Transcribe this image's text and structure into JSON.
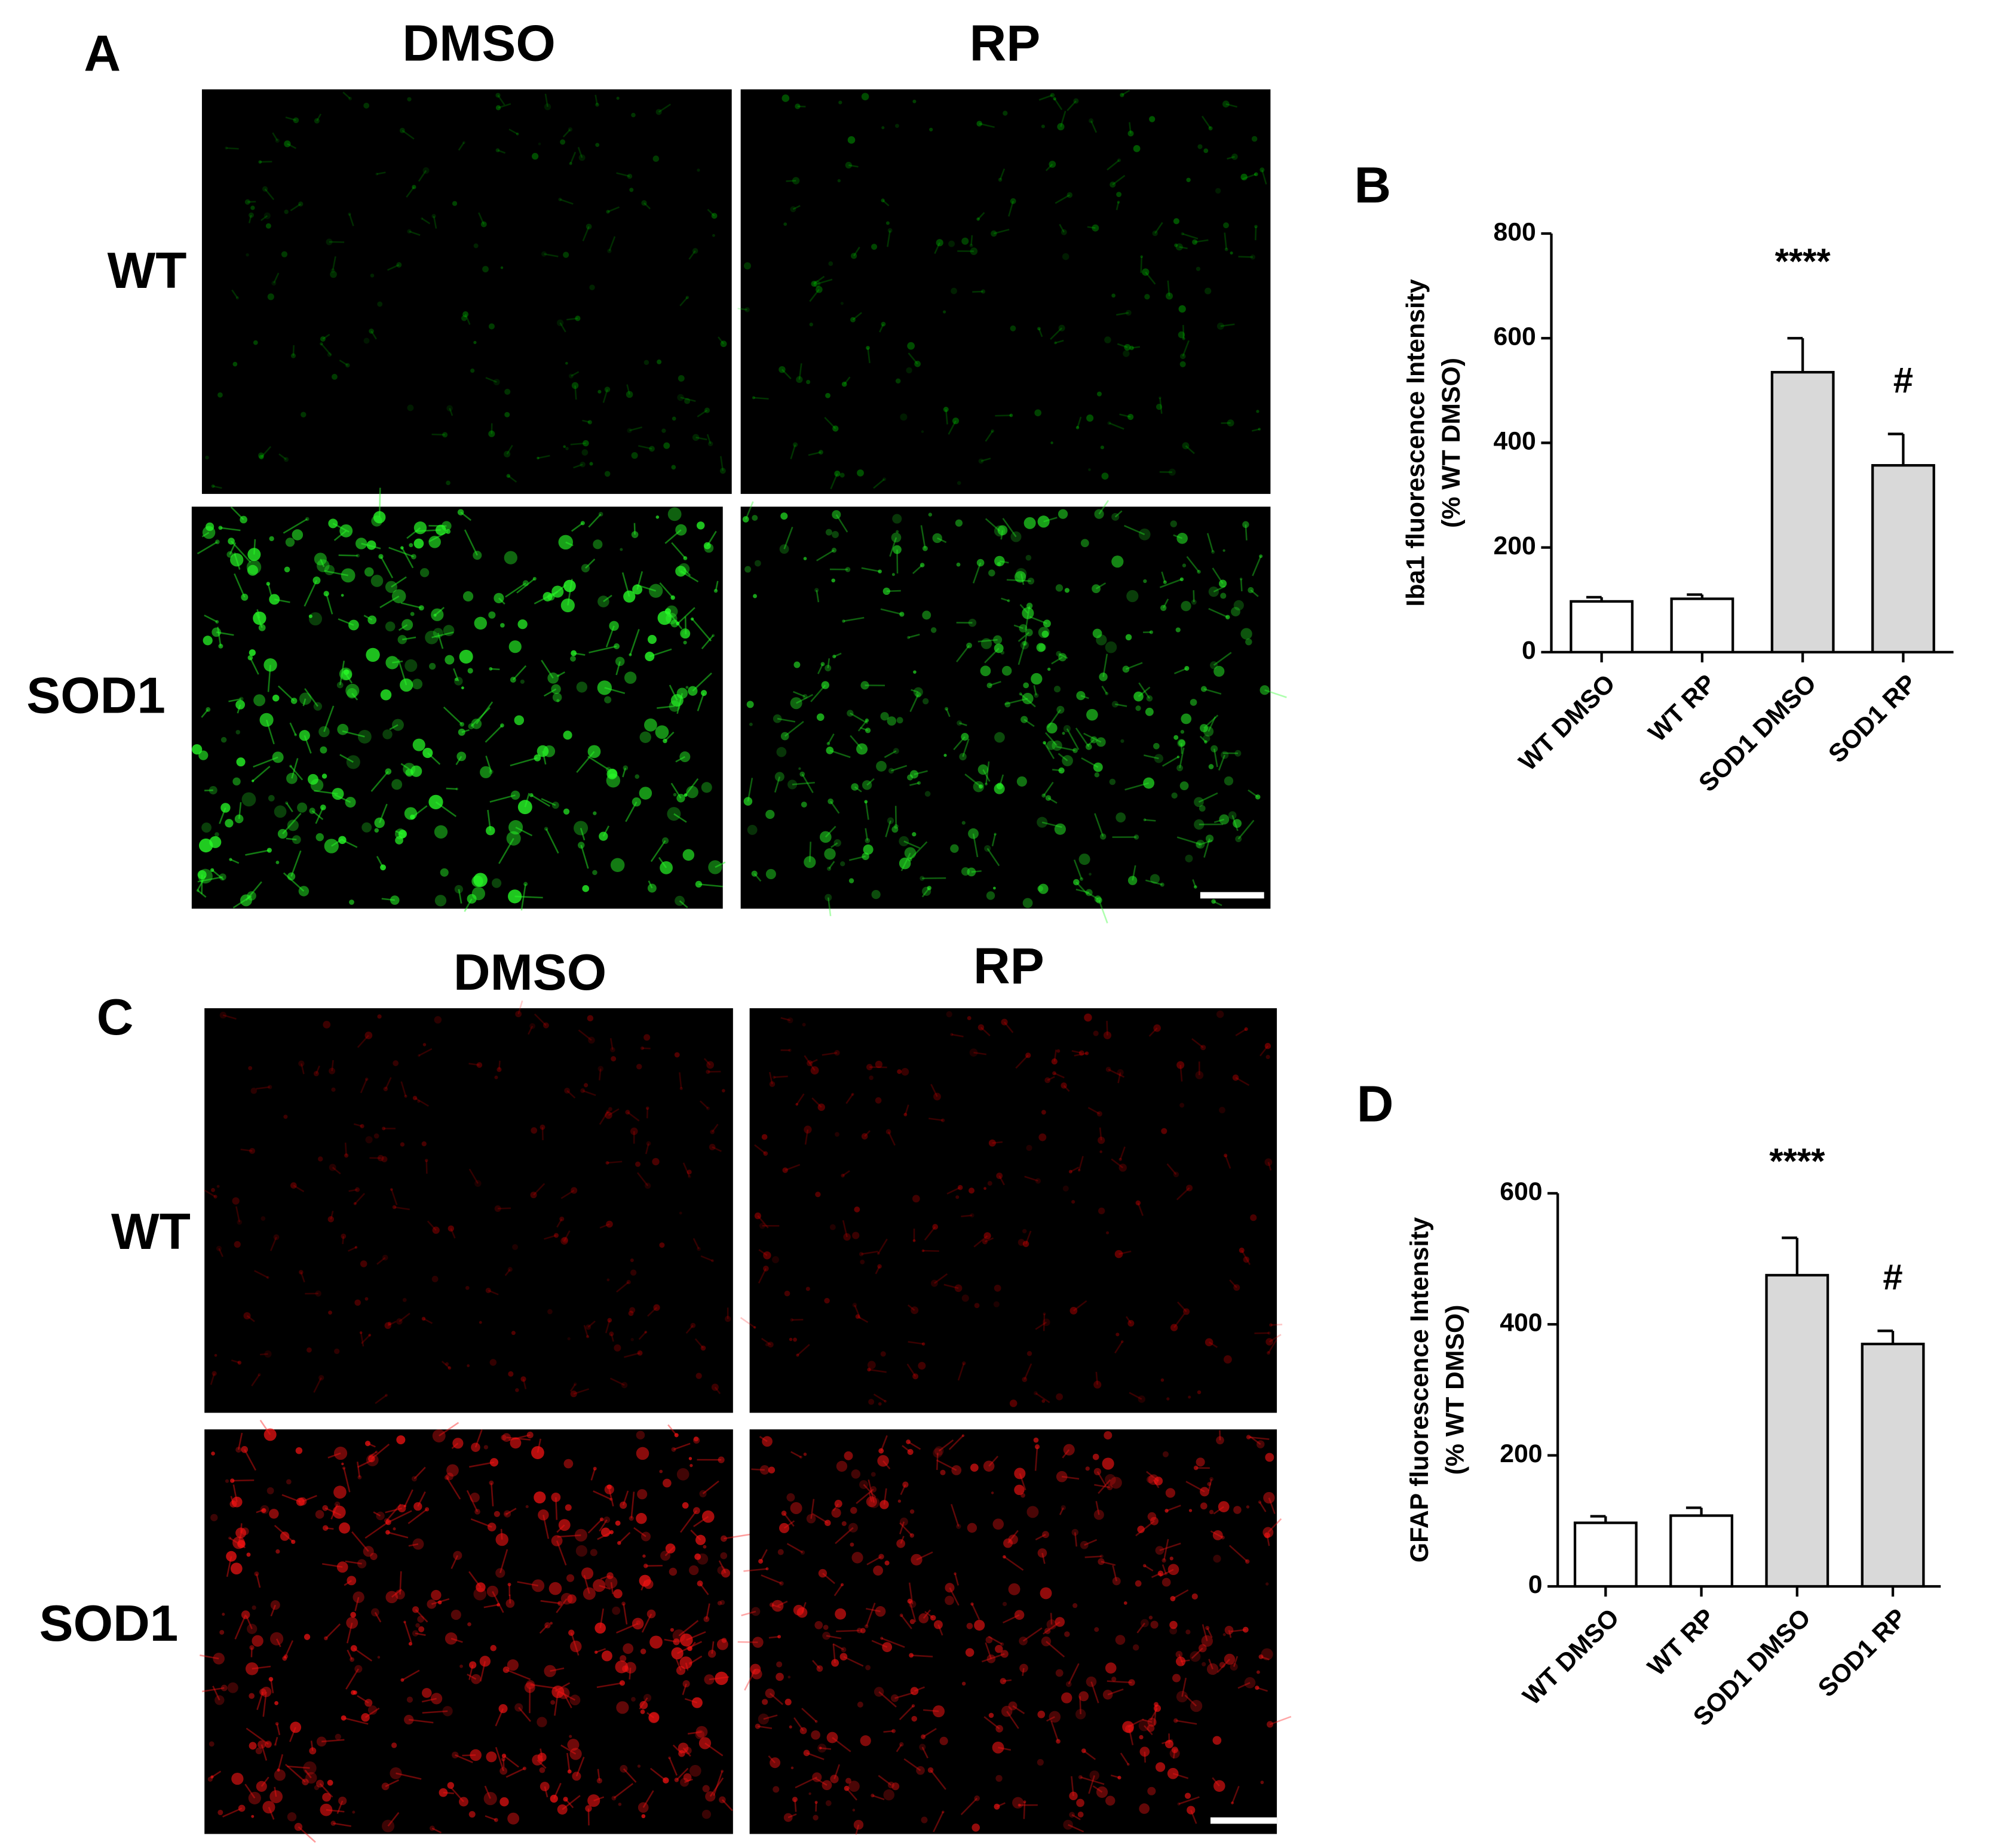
{
  "panel_a": {
    "label": "A",
    "columns": [
      "DMSO",
      "RP"
    ],
    "rows": [
      "WT",
      "SOD1"
    ]
  },
  "panel_c": {
    "label": "C",
    "columns": [
      "DMSO",
      "RP"
    ],
    "rows": [
      "WT",
      "SOD1"
    ]
  },
  "chart_data": [
    {
      "type": "bar",
      "panel": "B",
      "y_label": [
        "Iba1 fluorescence Intensity",
        "(%  WT DMSO)"
      ],
      "categories": [
        "WT DMSO",
        "WT RP",
        "SOD1 DMSO",
        "SOD1 RP"
      ],
      "values": [
        97,
        102,
        535,
        357
      ],
      "errors": [
        8,
        8,
        65,
        60
      ],
      "colors": [
        "#ffffff",
        "#ffffff",
        "#d9d9d9",
        "#d9d9d9"
      ],
      "annotations": [
        "****",
        "#"
      ],
      "ylim": [
        0,
        800
      ],
      "yticks": [
        0,
        200,
        400,
        600,
        800
      ]
    },
    {
      "type": "bar",
      "panel": "D",
      "y_label": [
        "GFAP fluorescence Intensity",
        "(% WT DMSO)"
      ],
      "categories": [
        "WT DMSO",
        "WT RP",
        "SOD1 DMSO",
        "SOD1 RP"
      ],
      "values": [
        97,
        108,
        475,
        370
      ],
      "errors": [
        10,
        12,
        57,
        20
      ],
      "colors": [
        "#ffffff",
        "#ffffff",
        "#d9d9d9",
        "#d9d9d9"
      ],
      "annotations": [
        "****",
        "#"
      ],
      "ylim": [
        0,
        600
      ],
      "yticks": [
        0,
        200,
        400,
        600
      ]
    }
  ]
}
